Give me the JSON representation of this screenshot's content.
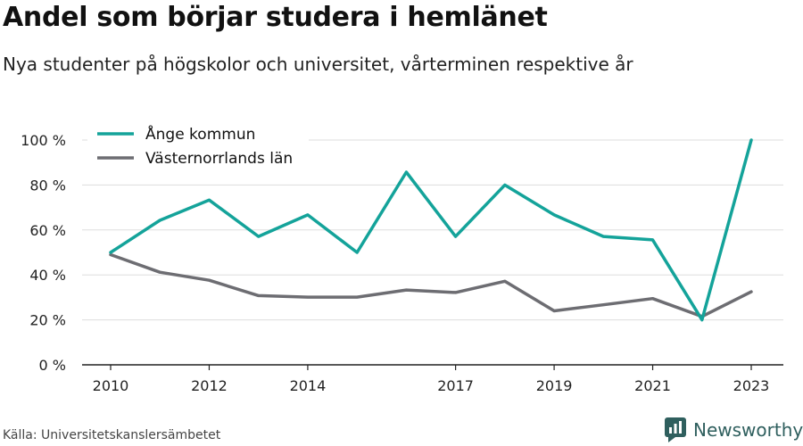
{
  "header": {
    "title": "Andel som börjar studera i hemlänet",
    "subtitle": "Nya studenter på högskolor och universitet, vårterminen respektive år"
  },
  "footer": {
    "source": "Källa: Universitetskanslersämbetet",
    "brand": "Newsworthy"
  },
  "colors": {
    "series_ange": "#14a39a",
    "series_lan": "#6d6d72",
    "grid": "#dddddd",
    "axis": "#222222",
    "brand": "#2f5f5e"
  },
  "chart_data": {
    "type": "line",
    "title": "Andel som börjar studera i hemlänet",
    "subtitle": "Nya studenter på högskolor och universitet, vårterminen respektive år",
    "ylim": [
      0,
      100
    ],
    "xlim": [
      2010,
      2023
    ],
    "y_ticks": [
      0,
      20,
      40,
      60,
      80,
      100
    ],
    "y_tick_labels": [
      "0 %",
      "20 %",
      "40 %",
      "60 %",
      "80 %",
      "100 %"
    ],
    "x_ticks": [
      2010,
      2012,
      2014,
      2017,
      2019,
      2021,
      2023
    ],
    "x_tick_labels": [
      "2010",
      "2012",
      "2014",
      "2017",
      "2019",
      "2021",
      "2023"
    ],
    "grid": true,
    "legend_position": "top-left",
    "x": [
      2010,
      2011,
      2012,
      2013,
      2014,
      2015,
      2016,
      2017,
      2018,
      2019,
      2020,
      2021,
      2022,
      2023
    ],
    "series": [
      {
        "name": "Ånge kommun",
        "color": "#14a39a",
        "values": [
          50,
          64.3,
          73.3,
          57.1,
          66.7,
          50,
          85.7,
          57.1,
          80,
          66.7,
          57.1,
          55.6,
          20,
          100
        ]
      },
      {
        "name": "Västernorrlands län",
        "color": "#6d6d72",
        "values": [
          49,
          41.2,
          37.6,
          30.8,
          30.1,
          30.1,
          33.3,
          32.2,
          37.2,
          24,
          26.7,
          29.5,
          21.5,
          32.5
        ]
      }
    ]
  }
}
